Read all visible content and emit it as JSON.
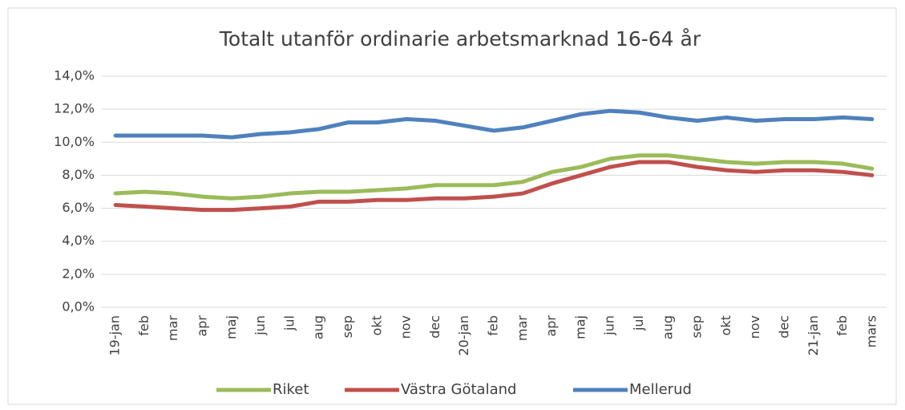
{
  "chart_data": {
    "type": "line",
    "title": "Totalt utanför ordinarie arbetsmarknad 16-64 år",
    "categories": [
      "19-jan",
      "feb",
      "mar",
      "apr",
      "maj",
      "jun",
      "jul",
      "aug",
      "sep",
      "okt",
      "nov",
      "dec",
      "20-jan",
      "feb",
      "mar",
      "apr",
      "maj",
      "jun",
      "jul",
      "aug",
      "sep",
      "okt",
      "nov",
      "dec",
      "21-jan",
      "feb",
      "mars"
    ],
    "series": [
      {
        "name": "Riket",
        "color": "#9bbb59",
        "values": [
          6.9,
          7.0,
          6.9,
          6.7,
          6.6,
          6.7,
          6.9,
          7.0,
          7.0,
          7.1,
          7.2,
          7.4,
          7.4,
          7.4,
          7.6,
          8.2,
          8.5,
          9.0,
          9.2,
          9.2,
          9.0,
          8.8,
          8.7,
          8.8,
          8.8,
          8.7,
          8.4
        ]
      },
      {
        "name": "Västra Götaland",
        "color": "#c0504d",
        "values": [
          6.2,
          6.1,
          6.0,
          5.9,
          5.9,
          6.0,
          6.1,
          6.4,
          6.4,
          6.5,
          6.5,
          6.6,
          6.6,
          6.7,
          6.9,
          7.5,
          8.0,
          8.5,
          8.8,
          8.8,
          8.5,
          8.3,
          8.2,
          8.3,
          8.3,
          8.2,
          8.0
        ]
      },
      {
        "name": "Mellerud",
        "color": "#4f81bd",
        "values": [
          10.4,
          10.4,
          10.4,
          10.4,
          10.3,
          10.5,
          10.6,
          10.8,
          11.2,
          11.2,
          11.4,
          11.3,
          11.0,
          10.7,
          10.9,
          11.3,
          11.7,
          11.9,
          11.8,
          11.5,
          11.3,
          11.5,
          11.3,
          11.4,
          11.4,
          11.5,
          11.4
        ]
      }
    ],
    "ylim": [
      0,
      14
    ],
    "yticks": [
      {
        "value": 0,
        "label": "0,0%"
      },
      {
        "value": 2,
        "label": "2,0%"
      },
      {
        "value": 4,
        "label": "4,0%"
      },
      {
        "value": 6,
        "label": "6,0%"
      },
      {
        "value": 8,
        "label": "8,0%"
      },
      {
        "value": 10,
        "label": "10,0%"
      },
      {
        "value": 12,
        "label": "12,0%"
      },
      {
        "value": 14,
        "label": "14,0%"
      }
    ],
    "grid": true,
    "legend": "bottom"
  }
}
